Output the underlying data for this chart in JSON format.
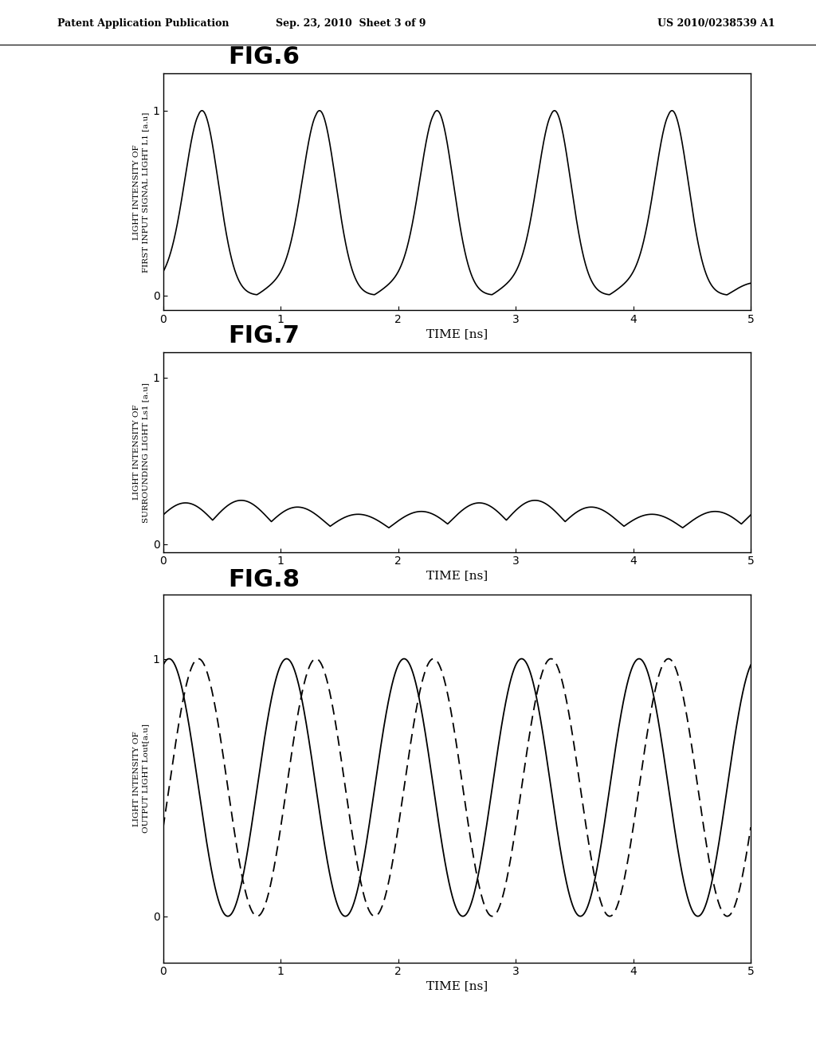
{
  "header_left": "Patent Application Publication",
  "header_center": "Sep. 23, 2010  Sheet 3 of 9",
  "header_right": "US 2010/0238539 A1",
  "fig6_title": "FIG.6",
  "fig6_ylabel": "LIGHT INTENSITY OF\nFIRST INPUT SIGNAL LIGHT L1 [a.u]",
  "fig6_xlabel": "TIME [ns]",
  "fig6_yticks": [
    0,
    1
  ],
  "fig6_xticks": [
    0,
    1,
    2,
    3,
    4,
    5
  ],
  "fig6_xlim": [
    0,
    5
  ],
  "fig6_ylim": [
    -0.08,
    1.2
  ],
  "fig7_title": "FIG.7",
  "fig7_ylabel": "LIGHT INTENSITY OF\nSURROUNDING LIGHT Ls1 [a.u]",
  "fig7_xlabel": "TIME [ns]",
  "fig7_yticks": [
    0,
    1
  ],
  "fig7_xticks": [
    0,
    1,
    2,
    3,
    4,
    5
  ],
  "fig7_xlim": [
    0,
    5
  ],
  "fig7_ylim": [
    -0.05,
    1.15
  ],
  "fig8_title": "FIG.8",
  "fig8_ylabel": "LIGHT INTENSITY OF\nOUTPUT LIGHT Lout[a.u]",
  "fig8_xlabel": "TIME [ns]",
  "fig8_yticks": [
    0,
    1
  ],
  "fig8_xticks": [
    0,
    1,
    2,
    3,
    4,
    5
  ],
  "fig8_xlim": [
    0,
    5
  ],
  "fig8_ylim": [
    -0.18,
    1.25
  ],
  "bg_color": "#ffffff",
  "line_color": "#000000"
}
